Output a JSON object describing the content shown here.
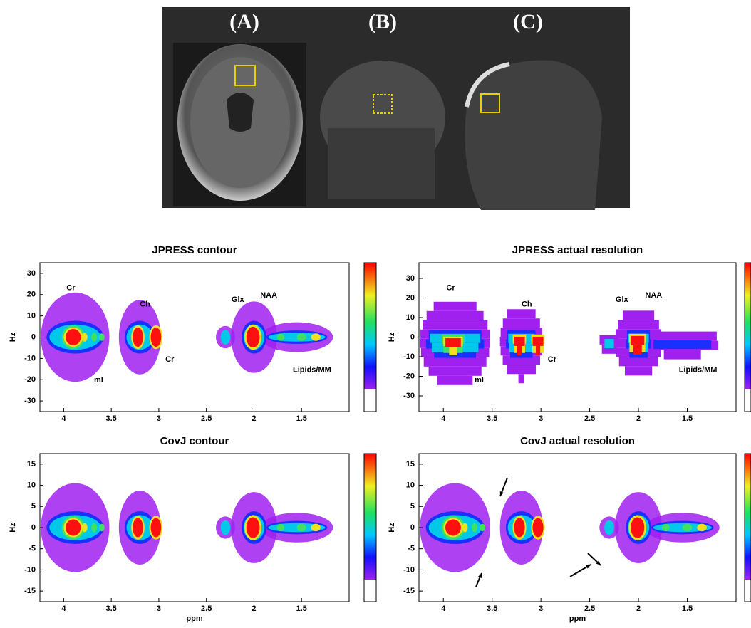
{
  "figure_panels": {
    "labels": [
      "(A)",
      "(B)",
      "(C)"
    ]
  },
  "chart_data": [
    {
      "type": "spectrum2d",
      "title": "JPRESS contour",
      "ylabel": "Hz",
      "xlim": [
        4.25,
        1.0
      ],
      "ylim": [
        -35,
        35
      ],
      "xticks": [
        4,
        3.5,
        3,
        2.5,
        2,
        1.5
      ],
      "yticks": [
        -30,
        -20,
        -10,
        0,
        10,
        20,
        30
      ],
      "annotations": [
        "Cr",
        "Ch",
        "Glx",
        "NAA",
        "Cr",
        "ml",
        "Lipids/MM"
      ],
      "colorbar": true
    },
    {
      "type": "spectrum2d-pixel",
      "title": "JPRESS actual resolution",
      "ylabel": "Hz",
      "xlim": [
        4.25,
        1.0
      ],
      "ylim": [
        -38,
        38
      ],
      "xticks": [
        4,
        3.5,
        3,
        2.5,
        2,
        1.5
      ],
      "yticks": [
        -30,
        -20,
        -10,
        0,
        10,
        20,
        30
      ],
      "annotations": [
        "Cr",
        "Ch",
        "Glx",
        "NAA",
        "Cr",
        "ml",
        "Lipids/MM"
      ],
      "colorbar": true
    },
    {
      "type": "spectrum2d",
      "title": "CovJ contour",
      "xlabel": "ppm",
      "ylabel": "Hz",
      "xlim": [
        4.25,
        1.0
      ],
      "ylim": [
        -17.5,
        17.5
      ],
      "xticks": [
        4,
        3.5,
        3,
        2.5,
        2,
        1.5
      ],
      "yticks": [
        -15,
        -10,
        -5,
        0,
        5,
        10,
        15
      ],
      "colorbar": true
    },
    {
      "type": "spectrum2d-arrows",
      "title": "CovJ actual resolution",
      "xlabel": "ppm",
      "ylabel": "Hz",
      "xlim": [
        4.25,
        1.0
      ],
      "ylim": [
        -17.5,
        17.5
      ],
      "xticks": [
        4,
        3.5,
        3,
        2.5,
        2,
        1.5
      ],
      "yticks": [
        -15,
        -10,
        -5,
        0,
        5,
        10,
        15
      ],
      "colorbar": true
    }
  ]
}
